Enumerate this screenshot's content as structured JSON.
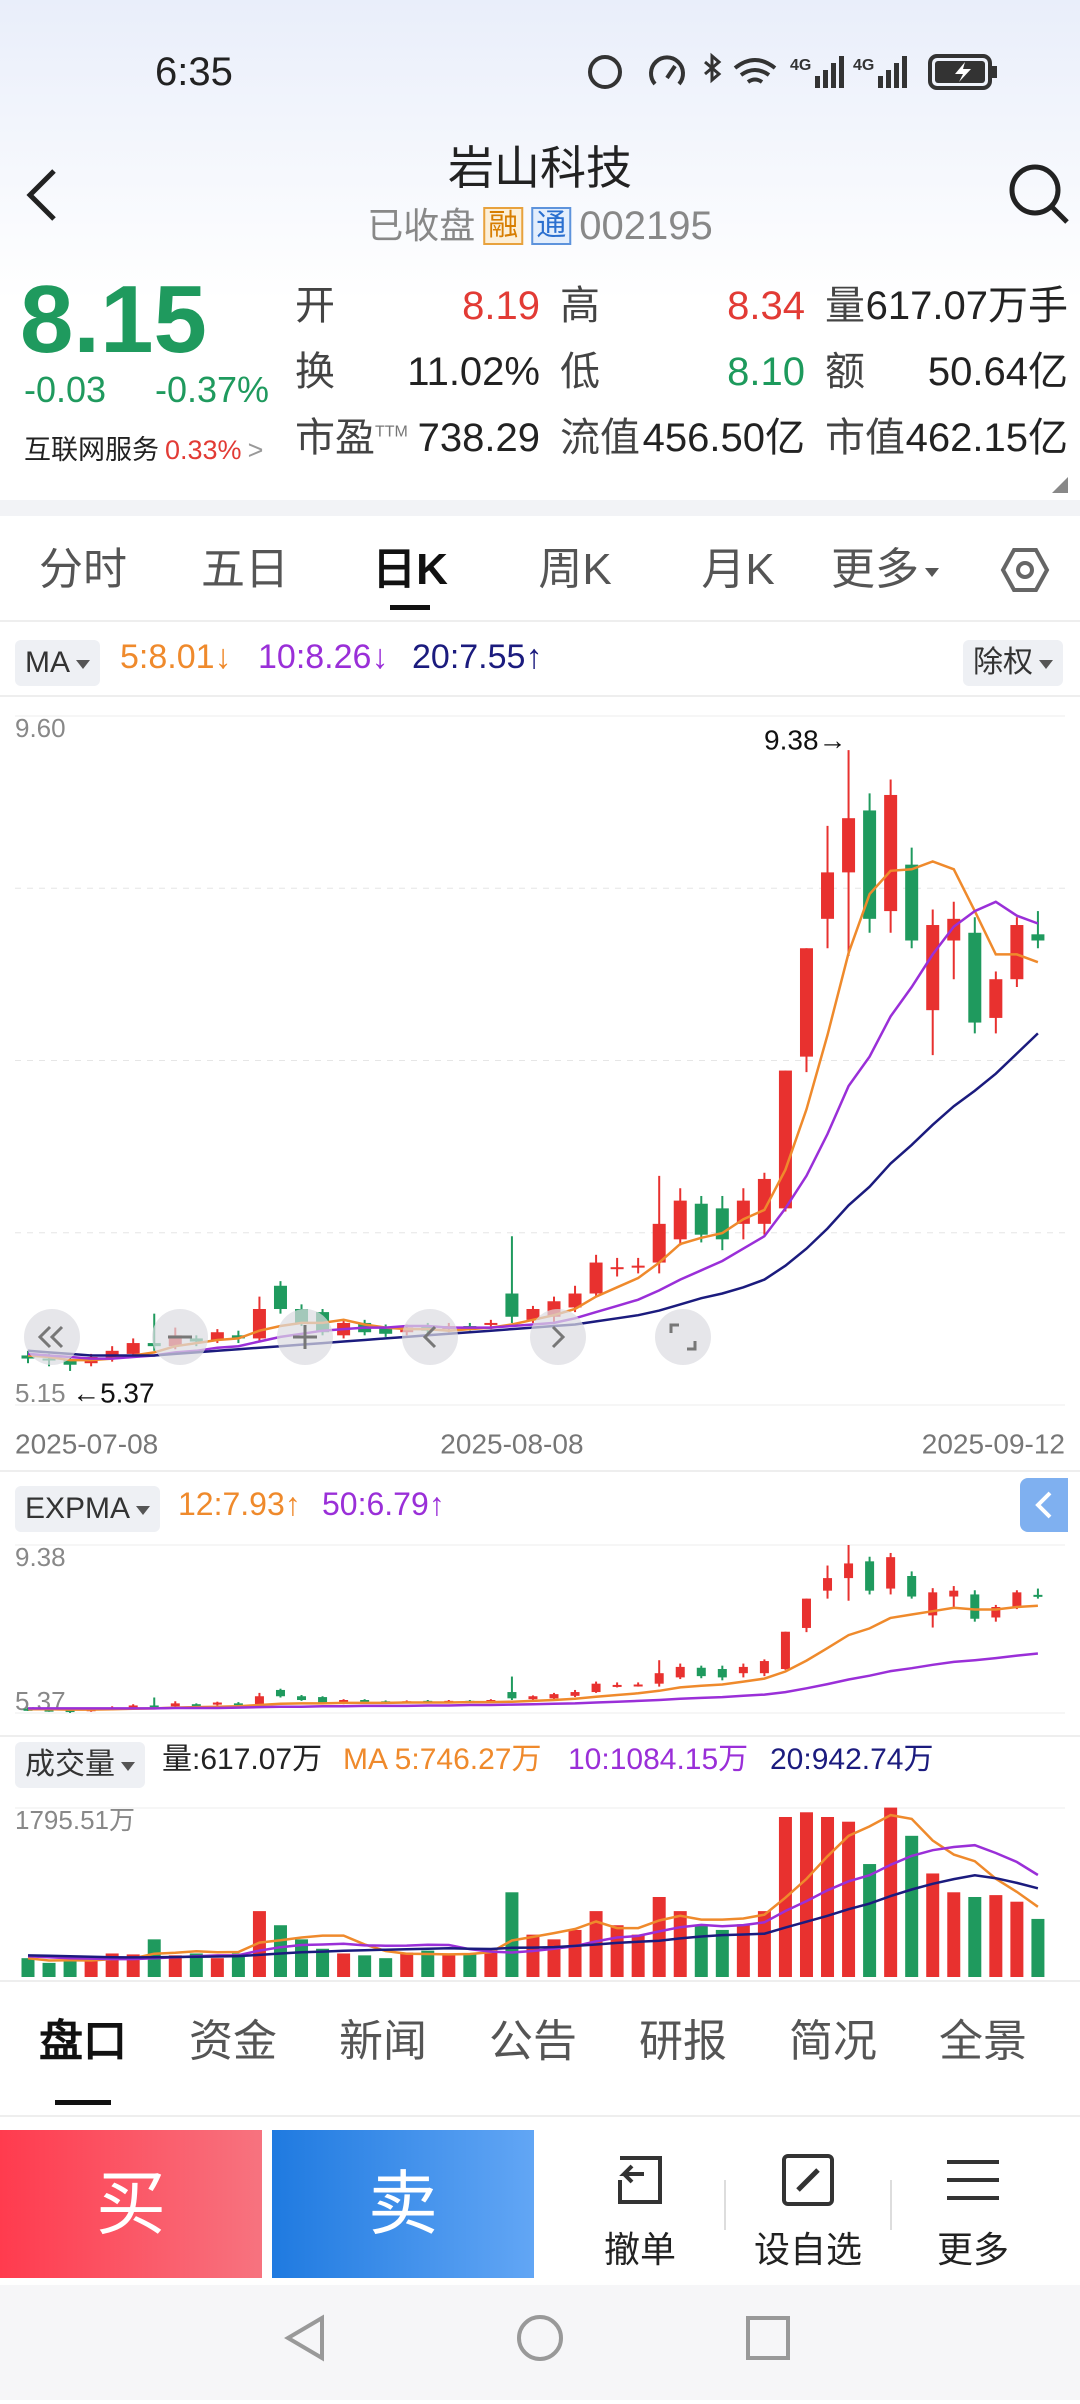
{
  "status_bar": {
    "time": "6:35"
  },
  "header": {
    "title": "岩山科技",
    "status": "已收盘",
    "badges": [
      "融",
      "通"
    ],
    "code": "002195"
  },
  "quote": {
    "price": "8.15",
    "change": "-0.03",
    "change_pct": "-0.37%",
    "sector": "互联网服务",
    "sector_change": "0.33%",
    "stats": [
      {
        "label": "开",
        "value": "8.19",
        "color": "#e23b35"
      },
      {
        "label": "高",
        "value": "8.34",
        "color": "#e23b35"
      },
      {
        "label": "量",
        "value": "617.07万手",
        "color": "#222222"
      },
      {
        "label": "换",
        "value": "11.02%",
        "color": "#222222"
      },
      {
        "label": "低",
        "value": "8.10",
        "color": "#1d9a5c"
      },
      {
        "label": "额",
        "value": "50.64亿",
        "color": "#222222"
      },
      {
        "label": "市盈",
        "sup": "TTM",
        "value": "738.29",
        "color": "#222222"
      },
      {
        "label": "流值",
        "value": "456.50亿",
        "color": "#222222"
      },
      {
        "label": "市值",
        "value": "462.15亿",
        "color": "#222222"
      }
    ]
  },
  "tabs": {
    "items": [
      "分时",
      "五日",
      "日K",
      "周K",
      "月K",
      "更多"
    ],
    "active": 2
  },
  "chart_data": [
    {
      "type": "candlestick",
      "indicator": "MA",
      "adjust": "除权",
      "categories": [
        "2025-07-08",
        null,
        null,
        null,
        null,
        null,
        null,
        null,
        null,
        null,
        null,
        null,
        null,
        null,
        null,
        null,
        null,
        null,
        null,
        null,
        null,
        null,
        null,
        "2025-08-08",
        null,
        null,
        null,
        null,
        null,
        null,
        null,
        null,
        null,
        null,
        null,
        null,
        null,
        null,
        null,
        null,
        null,
        null,
        null,
        null,
        null,
        null,
        null,
        null,
        "2025-09-12"
      ],
      "open": [
        5.47,
        5.45,
        5.44,
        5.42,
        5.45,
        5.48,
        5.55,
        5.53,
        5.58,
        5.57,
        5.6,
        5.58,
        5.92,
        5.77,
        5.75,
        5.6,
        5.68,
        5.65,
        5.62,
        5.66,
        5.64,
        5.66,
        5.67,
        5.87,
        5.7,
        5.72,
        5.78,
        5.87,
        6.03,
        6.04,
        6.07,
        6.22,
        6.45,
        6.42,
        6.32,
        6.32,
        6.42,
        7.4,
        8.29,
        8.59,
        8.99,
        8.34,
        8.64,
        7.7,
        8.15,
        8.2,
        7.65,
        7.9,
        8.19
      ],
      "high": [
        5.5,
        5.48,
        5.46,
        5.48,
        5.53,
        5.58,
        5.74,
        5.65,
        5.6,
        5.64,
        5.63,
        5.85,
        5.95,
        5.8,
        5.77,
        5.7,
        5.7,
        5.67,
        5.67,
        5.68,
        5.68,
        5.68,
        5.7,
        6.24,
        5.79,
        5.85,
        5.92,
        6.12,
        6.1,
        6.1,
        6.63,
        6.55,
        6.5,
        6.5,
        6.55,
        6.65,
        7.31,
        8.1,
        8.89,
        9.38,
        9.1,
        9.19,
        8.75,
        8.35,
        8.4,
        8.3,
        7.95,
        8.3,
        8.34
      ],
      "low": [
        5.42,
        5.4,
        5.37,
        5.4,
        5.43,
        5.46,
        5.5,
        5.51,
        5.53,
        5.55,
        5.55,
        5.56,
        5.74,
        5.66,
        5.6,
        5.58,
        5.6,
        5.59,
        5.6,
        5.61,
        5.62,
        5.63,
        5.64,
        5.68,
        5.68,
        5.68,
        5.75,
        5.85,
        5.98,
        6.0,
        6.0,
        6.18,
        6.2,
        6.15,
        6.22,
        6.25,
        6.4,
        7.3,
        8.1,
        8.05,
        8.2,
        8.2,
        8.1,
        7.41,
        7.9,
        7.55,
        7.55,
        7.85,
        8.1
      ],
      "close": [
        5.45,
        5.44,
        5.41,
        5.46,
        5.5,
        5.55,
        5.53,
        5.6,
        5.56,
        5.62,
        5.58,
        5.77,
        5.77,
        5.68,
        5.62,
        5.68,
        5.62,
        5.61,
        5.65,
        5.63,
        5.66,
        5.65,
        5.68,
        5.72,
        5.77,
        5.82,
        5.87,
        6.07,
        6.04,
        6.05,
        6.32,
        6.47,
        6.25,
        6.22,
        6.47,
        6.61,
        7.31,
        8.1,
        8.59,
        8.94,
        8.29,
        9.09,
        8.15,
        8.25,
        8.29,
        7.62,
        7.9,
        8.25,
        8.15
      ],
      "up_color": "#e8312f",
      "down_color": "#1f9a5e",
      "lines": [
        {
          "name": "5:8.01↓",
          "color": "#ef8a2c",
          "values": [
            5.47,
            5.46,
            5.44,
            5.44,
            5.45,
            5.47,
            5.49,
            5.53,
            5.55,
            5.57,
            5.58,
            5.63,
            5.66,
            5.68,
            5.68,
            5.7,
            5.67,
            5.65,
            5.64,
            5.64,
            5.63,
            5.64,
            5.65,
            5.67,
            5.7,
            5.73,
            5.77,
            5.85,
            5.91,
            5.97,
            6.07,
            6.19,
            6.23,
            6.26,
            6.35,
            6.41,
            6.67,
            7.06,
            7.54,
            8.07,
            8.45,
            8.6,
            8.61,
            8.66,
            8.61,
            8.34,
            8.06,
            8.06,
            8.01
          ]
        },
        {
          "name": "10:8.26↓",
          "color": "#9a2fd8",
          "values": [
            5.48,
            5.47,
            5.46,
            5.45,
            5.45,
            5.46,
            5.47,
            5.49,
            5.5,
            5.52,
            5.53,
            5.56,
            5.59,
            5.61,
            5.63,
            5.64,
            5.65,
            5.65,
            5.66,
            5.66,
            5.65,
            5.65,
            5.65,
            5.66,
            5.67,
            5.68,
            5.71,
            5.75,
            5.79,
            5.83,
            5.89,
            5.96,
            6.02,
            6.08,
            6.16,
            6.24,
            6.42,
            6.63,
            6.9,
            7.21,
            7.4,
            7.66,
            7.85,
            8.06,
            8.24,
            8.34,
            8.4,
            8.31,
            8.26
          ]
        },
        {
          "name": "20:7.55↑",
          "color": "#1b1b7e",
          "values": [
            5.5,
            5.49,
            5.48,
            5.47,
            5.47,
            5.47,
            5.47,
            5.48,
            5.49,
            5.5,
            5.51,
            5.52,
            5.53,
            5.54,
            5.55,
            5.56,
            5.57,
            5.58,
            5.59,
            5.6,
            5.61,
            5.62,
            5.63,
            5.64,
            5.65,
            5.66,
            5.67,
            5.69,
            5.71,
            5.73,
            5.76,
            5.8,
            5.84,
            5.87,
            5.91,
            5.96,
            6.05,
            6.16,
            6.29,
            6.44,
            6.56,
            6.71,
            6.83,
            6.96,
            7.08,
            7.18,
            7.29,
            7.42,
            7.55
          ]
        }
      ],
      "ylim": [
        5.15,
        9.6
      ],
      "yticks": [
        {
          "value": 9.6,
          "label": "9.60"
        },
        5.15
      ],
      "max_label": "9.38→",
      "min_label": "←5.37"
    },
    {
      "type": "candlestick",
      "indicator": "EXPMA",
      "lines": [
        {
          "name": "12:7.93↑",
          "color": "#ef8a2c",
          "values": [
            5.46,
            5.46,
            5.45,
            5.45,
            5.46,
            5.47,
            5.48,
            5.5,
            5.51,
            5.52,
            5.53,
            5.56,
            5.59,
            5.6,
            5.6,
            5.61,
            5.61,
            5.61,
            5.62,
            5.62,
            5.62,
            5.63,
            5.63,
            5.64,
            5.66,
            5.68,
            5.71,
            5.76,
            5.8,
            5.84,
            5.9,
            5.98,
            6.02,
            6.05,
            6.12,
            6.19,
            6.36,
            6.62,
            6.92,
            7.23,
            7.39,
            7.64,
            7.72,
            7.8,
            7.88,
            7.84,
            7.84,
            7.9,
            7.93
          ]
        },
        {
          "name": "50:6.79↑",
          "color": "#9a2fd8",
          "values": [
            5.48,
            5.48,
            5.48,
            5.48,
            5.48,
            5.48,
            5.48,
            5.49,
            5.49,
            5.49,
            5.5,
            5.51,
            5.52,
            5.52,
            5.53,
            5.53,
            5.54,
            5.54,
            5.54,
            5.55,
            5.55,
            5.56,
            5.56,
            5.57,
            5.58,
            5.59,
            5.6,
            5.62,
            5.64,
            5.66,
            5.68,
            5.71,
            5.73,
            5.75,
            5.78,
            5.81,
            5.87,
            5.96,
            6.06,
            6.17,
            6.26,
            6.37,
            6.44,
            6.52,
            6.59,
            6.63,
            6.68,
            6.74,
            6.79
          ]
        }
      ],
      "ylim": [
        5.37,
        9.38
      ],
      "yticks": [
        9.38,
        5.37
      ]
    },
    {
      "type": "bar",
      "indicator": "成交量",
      "volume_text": "量:617.07万",
      "values": [
        200,
        150,
        180,
        170,
        250,
        240,
        400,
        230,
        250,
        200,
        250,
        700,
        550,
        400,
        300,
        250,
        230,
        200,
        260,
        280,
        230,
        250,
        300,
        900,
        450,
        400,
        500,
        700,
        550,
        450,
        850,
        700,
        550,
        500,
        560,
        700,
        1700,
        1750,
        1700,
        1650,
        1200,
        1800,
        1500,
        1100,
        900,
        850,
        870,
        800,
        617.07
      ],
      "lines": [
        {
          "name": "MA 5:746.27万",
          "color": "#ef8a2c",
          "values": [
            200,
            175,
            177,
            175,
            190,
            198,
            248,
            258,
            274,
            264,
            266,
            366,
            390,
            420,
            440,
            440,
            346,
            276,
            248,
            244,
            240,
            244,
            264,
            388,
            426,
            466,
            510,
            590,
            520,
            520,
            600,
            650,
            610,
            610,
            622,
            662,
            842,
            1042,
            1282,
            1500,
            1600,
            1720,
            1680,
            1450,
            1300,
            1230,
            1044,
            904,
            746.27
          ]
        },
        {
          "name": "10:1084.15万",
          "color": "#9a2fd8",
          "values": [
            220,
            210,
            200,
            195,
            190,
            190,
            200,
            210,
            220,
            230,
            232,
            280,
            317,
            340,
            345,
            353,
            336,
            333,
            334,
            342,
            340,
            295,
            270,
            260,
            276,
            300,
            328,
            378,
            420,
            437,
            484,
            529,
            554,
            540,
            551,
            581,
            701,
            806,
            921,
            1017,
            1082,
            1192,
            1287,
            1347,
            1381,
            1400,
            1317,
            1222,
            1084.15
          ]
        },
        {
          "name": "20:942.74万",
          "color": "#1b1b7e",
          "values": [
            230,
            225,
            220,
            215,
            210,
            208,
            210,
            212,
            215,
            218,
            222,
            235,
            250,
            262,
            270,
            278,
            285,
            290,
            295,
            300,
            305,
            300,
            298,
            310,
            312,
            318,
            330,
            345,
            362,
            374,
            385,
            410,
            430,
            445,
            452,
            460,
            525,
            588,
            650,
            720,
            780,
            860,
            930,
            990,
            1040,
            1080,
            1050,
            1000,
            942.74
          ]
        }
      ],
      "ylim": [
        0,
        1795.51
      ],
      "yticks": [
        {
          "value": 1795.51,
          "label": "1795.51万"
        }
      ]
    }
  ],
  "bottom_tabs": {
    "items": [
      "盘口",
      "资金",
      "新闻",
      "公告",
      "研报",
      "简况",
      "全景"
    ],
    "active": 0
  },
  "actions": {
    "buy": "买",
    "sell": "卖",
    "tools": [
      "撤单",
      "设自选",
      "更多"
    ]
  }
}
